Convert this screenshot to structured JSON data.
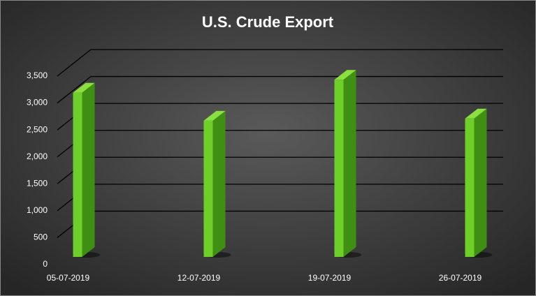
{
  "chart_data": {
    "type": "bar3d",
    "title": "U.S. Crude Export",
    "categories": [
      "05-07-2019",
      "12-07-2019",
      "19-07-2019",
      "26-07-2019"
    ],
    "values": [
      3050,
      2530,
      3290,
      2570
    ],
    "color": "#6fcf2a",
    "ylim": [
      0,
      3500
    ],
    "yticks": [
      0,
      {
        "value": 500,
        "label": "500"
      },
      {
        "value": 1000,
        "label": "1,000"
      },
      {
        "value": 1500,
        "label": "1,500"
      },
      {
        "value": 2000,
        "label": "2,000"
      },
      {
        "value": 2500,
        "label": "2,500"
      },
      {
        "value": 3000,
        "label": "3,000"
      },
      {
        "value": 3500,
        "label": "3,500"
      }
    ],
    "grid": true
  }
}
